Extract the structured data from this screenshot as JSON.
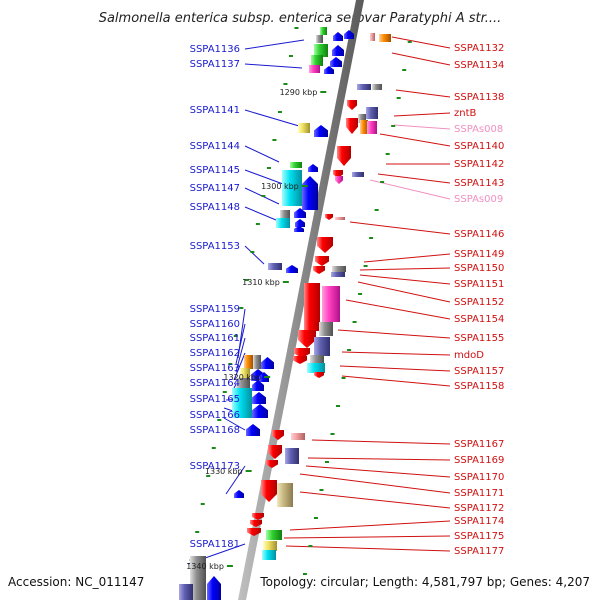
{
  "title": "Salmonella enterica subsp. enterica serovar Paratyphi A str....",
  "footer": {
    "accession": "Accession: NC_011147",
    "summary": "Topology: circular; Length: 4,581,797 bp; Genes: 4,207"
  },
  "colors": {
    "left_labels": "#1a1ad0",
    "right_labels": "#d01010",
    "rna_labels": "#f090c0",
    "backbone": "#909090",
    "ticks": "#1a8a1a"
  },
  "kbp_marks": [
    "1290 kbp",
    "1300 kbp",
    "1310 kbp",
    "1320 kbp",
    "1330 kbp",
    "1340 kbp"
  ],
  "left_genes": [
    "SSPA1136",
    "SSPA1137",
    "SSPA1141",
    "SSPA1144",
    "SSPA1145",
    "SSPA1147",
    "SSPA1148",
    "SSPA1153",
    "SSPA1159",
    "SSPA1160",
    "SSPA1161",
    "SSPA1162",
    "SSPA1163",
    "SSPA1164",
    "SSPA1165",
    "SSPA1166",
    "SSPA1168",
    "SSPA1173",
    "SSPA1181"
  ],
  "right_genes": [
    "SSPA1132",
    "SSPA1134",
    "SSPA1138",
    "zntB",
    "SSPAs008",
    "SSPA1140",
    "SSPA1142",
    "SSPA1143",
    "SSPAs009",
    "SSPA1146",
    "SSPA1149",
    "SSPA1150",
    "SSPA1151",
    "SSPA1152",
    "SSPA1154",
    "SSPA1155",
    "mdoD",
    "SSPA1157",
    "SSPA1158",
    "SSPA1167",
    "SSPA1169",
    "SSPA1170",
    "SSPA1171",
    "SSPA1172",
    "SSPA1174",
    "SSPA1175",
    "SSPA1177"
  ],
  "rna_genes": [
    "SSPAs008",
    "SSPAs009"
  ]
}
